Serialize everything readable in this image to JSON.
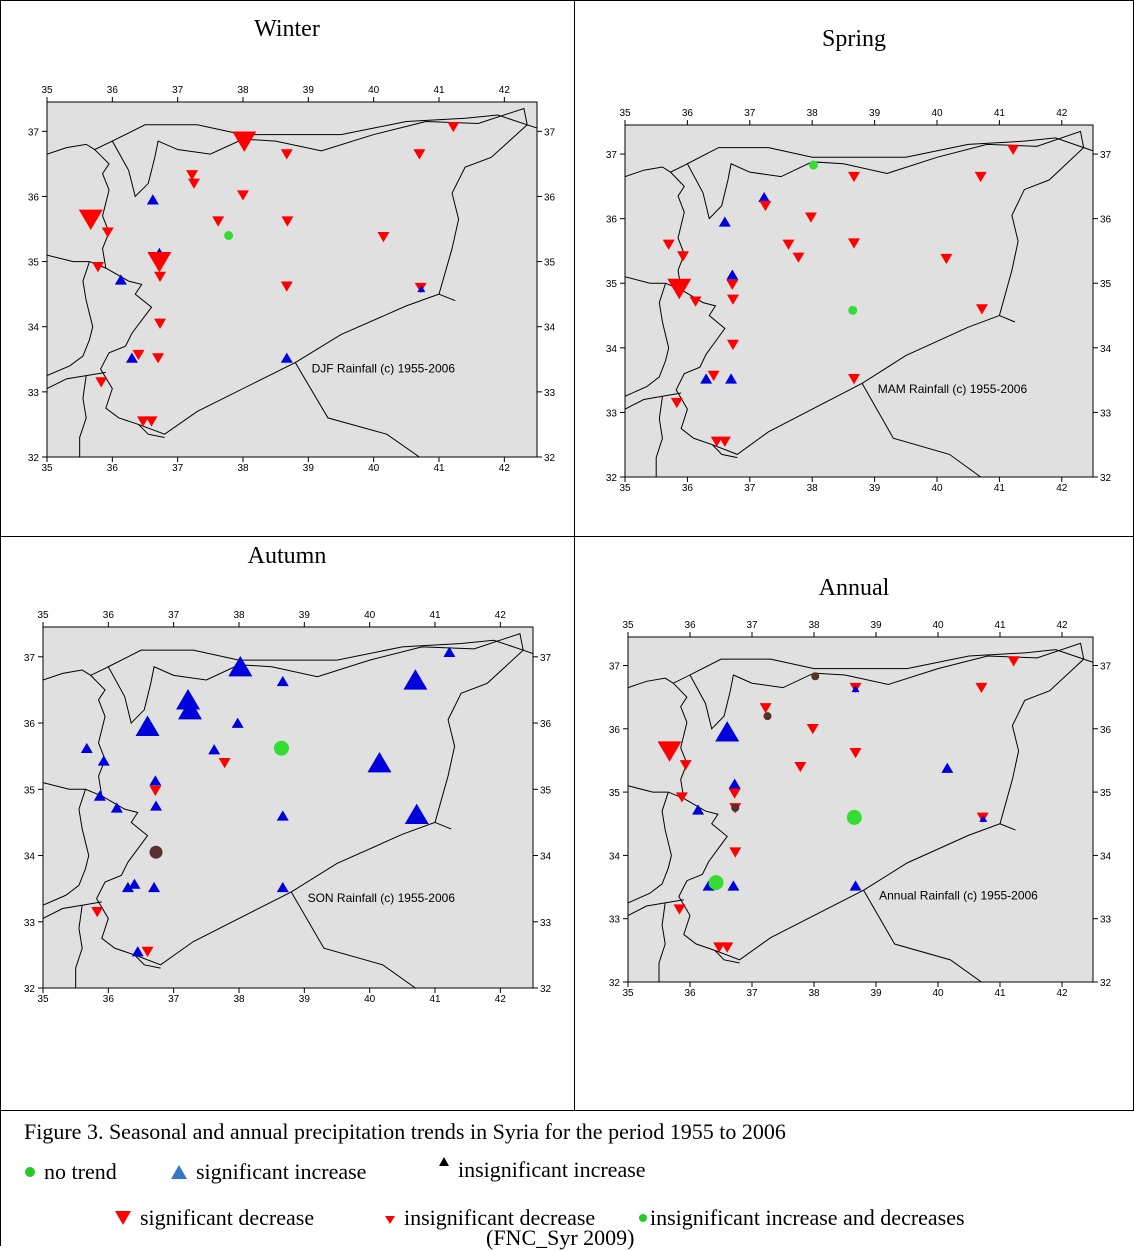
{
  "figure": {
    "caption": "Figure 3.  Seasonal and annual precipitation trends in Syria for the period 1955 to 2006",
    "source": "(FNC_Syr 2009)",
    "legend": [
      {
        "key": "no-trend",
        "label": "no trend",
        "color": "#22cc22",
        "shape": "circle"
      },
      {
        "key": "sig-inc",
        "label": "significant increase",
        "color": "#3377cc",
        "shape": "triangle-up"
      },
      {
        "key": "insig-inc",
        "label": "insignificant increase",
        "color": "#000000",
        "shape": "triangle-up-small"
      },
      {
        "key": "sig-dec",
        "label": "significant decrease",
        "color": "#ff0000",
        "shape": "triangle-down"
      },
      {
        "key": "insig-dec",
        "label": "insignificant decrease",
        "color": "#ff0000",
        "shape": "triangle-down-small"
      },
      {
        "key": "insig-both",
        "label": "insignificant increase and decreases",
        "color": "#22cc22",
        "shape": "circle-small"
      }
    ]
  },
  "colors": {
    "decrease": "#ff0000",
    "increase": "#0000dd",
    "no_trend": "#33dd33",
    "mixed": "#5a2e2e",
    "land": "#e0e0e0"
  },
  "axes": {
    "x_ticks": [
      35,
      36,
      37,
      38,
      39,
      40,
      41,
      42
    ],
    "y_ticks": [
      32,
      33,
      34,
      35,
      36,
      37
    ]
  },
  "maps": [
    {
      "season": "Winter",
      "label": "DJF Rainfall (c) 1955-2006",
      "stations": [
        {
          "lon": 35.67,
          "lat": 35.65,
          "t": "dec",
          "s": 3
        },
        {
          "lon": 35.93,
          "lat": 35.45,
          "t": "dec",
          "s": 1
        },
        {
          "lon": 35.78,
          "lat": 34.92,
          "t": "dec",
          "s": 1
        },
        {
          "lon": 36.13,
          "lat": 34.72,
          "t": "inc",
          "s": 1
        },
        {
          "lon": 35.83,
          "lat": 33.15,
          "t": "dec",
          "s": 1
        },
        {
          "lon": 36.3,
          "lat": 33.52,
          "t": "inc",
          "s": 1
        },
        {
          "lon": 36.4,
          "lat": 33.57,
          "t": "dec",
          "s": 1
        },
        {
          "lon": 36.47,
          "lat": 32.55,
          "t": "dec",
          "s": 1
        },
        {
          "lon": 36.6,
          "lat": 32.55,
          "t": "dec",
          "s": 1
        },
        {
          "lon": 36.62,
          "lat": 35.95,
          "t": "inc",
          "s": 1
        },
        {
          "lon": 36.72,
          "lat": 35.13,
          "t": "inc",
          "s": 1
        },
        {
          "lon": 36.72,
          "lat": 35.0,
          "t": "dec",
          "s": 3
        },
        {
          "lon": 36.73,
          "lat": 34.77,
          "t": "dec",
          "s": 1
        },
        {
          "lon": 36.73,
          "lat": 34.05,
          "t": "dec",
          "s": 1
        },
        {
          "lon": 36.7,
          "lat": 33.52,
          "t": "dec",
          "s": 1
        },
        {
          "lon": 37.22,
          "lat": 36.33,
          "t": "dec",
          "s": 1
        },
        {
          "lon": 37.25,
          "lat": 36.2,
          "t": "dec",
          "s": 1
        },
        {
          "lon": 37.62,
          "lat": 35.62,
          "t": "dec",
          "s": 1
        },
        {
          "lon": 37.78,
          "lat": 35.4,
          "t": "none",
          "s": 1
        },
        {
          "lon": 38.0,
          "lat": 36.02,
          "t": "dec",
          "s": 1
        },
        {
          "lon": 38.02,
          "lat": 36.85,
          "t": "dec",
          "s": 3
        },
        {
          "lon": 38.67,
          "lat": 36.65,
          "t": "dec",
          "s": 1
        },
        {
          "lon": 38.68,
          "lat": 35.62,
          "t": "dec",
          "s": 1
        },
        {
          "lon": 38.67,
          "lat": 34.62,
          "t": "dec",
          "s": 1
        },
        {
          "lon": 38.67,
          "lat": 33.52,
          "t": "inc",
          "s": 1
        },
        {
          "lon": 40.15,
          "lat": 35.38,
          "t": "dec",
          "s": 1
        },
        {
          "lon": 40.7,
          "lat": 36.65,
          "t": "dec",
          "s": 1
        },
        {
          "lon": 40.72,
          "lat": 34.6,
          "t": "dec",
          "s": 1
        },
        {
          "lon": 40.73,
          "lat": 34.58,
          "t": "inc",
          "s": 0
        },
        {
          "lon": 41.22,
          "lat": 37.07,
          "t": "dec",
          "s": 1
        }
      ]
    },
    {
      "season": "Spring",
      "label": "MAM Rainfall (c) 1955-2006",
      "stations": [
        {
          "lon": 35.7,
          "lat": 35.6,
          "t": "dec",
          "s": 1
        },
        {
          "lon": 35.93,
          "lat": 35.42,
          "t": "dec",
          "s": 1
        },
        {
          "lon": 35.87,
          "lat": 34.92,
          "t": "dec",
          "s": 3
        },
        {
          "lon": 36.13,
          "lat": 34.72,
          "t": "dec",
          "s": 1
        },
        {
          "lon": 35.83,
          "lat": 33.15,
          "t": "dec",
          "s": 1
        },
        {
          "lon": 36.3,
          "lat": 33.52,
          "t": "inc",
          "s": 1
        },
        {
          "lon": 36.42,
          "lat": 33.57,
          "t": "dec",
          "s": 1
        },
        {
          "lon": 36.47,
          "lat": 32.55,
          "t": "dec",
          "s": 1
        },
        {
          "lon": 36.6,
          "lat": 32.55,
          "t": "dec",
          "s": 1
        },
        {
          "lon": 36.6,
          "lat": 35.95,
          "t": "inc",
          "s": 1
        },
        {
          "lon": 36.72,
          "lat": 35.13,
          "t": "inc",
          "s": 1
        },
        {
          "lon": 36.72,
          "lat": 34.98,
          "t": "dec",
          "s": 1
        },
        {
          "lon": 36.73,
          "lat": 34.75,
          "t": "dec",
          "s": 1
        },
        {
          "lon": 36.73,
          "lat": 34.05,
          "t": "dec",
          "s": 1
        },
        {
          "lon": 36.7,
          "lat": 33.52,
          "t": "inc",
          "s": 1
        },
        {
          "lon": 37.23,
          "lat": 36.33,
          "t": "inc",
          "s": 1
        },
        {
          "lon": 37.25,
          "lat": 36.2,
          "t": "dec",
          "s": 1
        },
        {
          "lon": 37.62,
          "lat": 35.6,
          "t": "dec",
          "s": 1
        },
        {
          "lon": 37.78,
          "lat": 35.4,
          "t": "dec",
          "s": 1
        },
        {
          "lon": 37.98,
          "lat": 36.02,
          "t": "dec",
          "s": 1
        },
        {
          "lon": 38.02,
          "lat": 36.83,
          "t": "none",
          "s": 1
        },
        {
          "lon": 38.67,
          "lat": 36.65,
          "t": "dec",
          "s": 1
        },
        {
          "lon": 38.67,
          "lat": 35.62,
          "t": "dec",
          "s": 1
        },
        {
          "lon": 38.65,
          "lat": 34.58,
          "t": "none",
          "s": 1
        },
        {
          "lon": 38.67,
          "lat": 33.52,
          "t": "dec",
          "s": 1
        },
        {
          "lon": 40.15,
          "lat": 35.38,
          "t": "dec",
          "s": 1
        },
        {
          "lon": 40.7,
          "lat": 36.65,
          "t": "dec",
          "s": 1
        },
        {
          "lon": 40.72,
          "lat": 34.6,
          "t": "dec",
          "s": 1
        },
        {
          "lon": 41.22,
          "lat": 37.07,
          "t": "dec",
          "s": 1
        }
      ]
    },
    {
      "season": "Autumn",
      "label": "SON Rainfall (c) 1955-2006",
      "stations": [
        {
          "lon": 35.67,
          "lat": 35.62,
          "t": "inc",
          "s": 1
        },
        {
          "lon": 35.93,
          "lat": 35.43,
          "t": "inc",
          "s": 1
        },
        {
          "lon": 35.87,
          "lat": 34.9,
          "t": "inc",
          "s": 1
        },
        {
          "lon": 36.13,
          "lat": 34.72,
          "t": "inc",
          "s": 1
        },
        {
          "lon": 35.83,
          "lat": 33.15,
          "t": "dec",
          "s": 1
        },
        {
          "lon": 36.3,
          "lat": 33.52,
          "t": "inc",
          "s": 1
        },
        {
          "lon": 36.4,
          "lat": 33.57,
          "t": "inc",
          "s": 1
        },
        {
          "lon": 36.45,
          "lat": 32.55,
          "t": "inc",
          "s": 1
        },
        {
          "lon": 36.6,
          "lat": 32.55,
          "t": "dec",
          "s": 1
        },
        {
          "lon": 36.6,
          "lat": 35.95,
          "t": "inc",
          "s": 3
        },
        {
          "lon": 36.72,
          "lat": 35.13,
          "t": "inc",
          "s": 1
        },
        {
          "lon": 36.72,
          "lat": 34.98,
          "t": "dec",
          "s": 1
        },
        {
          "lon": 36.73,
          "lat": 34.75,
          "t": "inc",
          "s": 1
        },
        {
          "lon": 36.73,
          "lat": 34.05,
          "t": "mixed",
          "s": 2
        },
        {
          "lon": 36.7,
          "lat": 33.52,
          "t": "inc",
          "s": 1
        },
        {
          "lon": 37.22,
          "lat": 36.35,
          "t": "inc",
          "s": 3
        },
        {
          "lon": 37.25,
          "lat": 36.2,
          "t": "inc",
          "s": 3
        },
        {
          "lon": 37.62,
          "lat": 35.6,
          "t": "inc",
          "s": 1
        },
        {
          "lon": 37.78,
          "lat": 35.4,
          "t": "dec",
          "s": 1
        },
        {
          "lon": 37.98,
          "lat": 36.0,
          "t": "inc",
          "s": 1
        },
        {
          "lon": 38.02,
          "lat": 36.85,
          "t": "inc",
          "s": 3
        },
        {
          "lon": 38.67,
          "lat": 36.63,
          "t": "inc",
          "s": 1
        },
        {
          "lon": 38.65,
          "lat": 35.62,
          "t": "none",
          "s": 2
        },
        {
          "lon": 38.67,
          "lat": 34.6,
          "t": "inc",
          "s": 1
        },
        {
          "lon": 38.67,
          "lat": 33.52,
          "t": "inc",
          "s": 1
        },
        {
          "lon": 40.15,
          "lat": 35.4,
          "t": "inc",
          "s": 3
        },
        {
          "lon": 40.7,
          "lat": 36.65,
          "t": "inc",
          "s": 3
        },
        {
          "lon": 40.72,
          "lat": 34.62,
          "t": "inc",
          "s": 3
        },
        {
          "lon": 41.22,
          "lat": 37.07,
          "t": "inc",
          "s": 1
        }
      ]
    },
    {
      "season": "Annual",
      "label": "Annual Rainfall (c) 1955-2006",
      "stations": [
        {
          "lon": 35.67,
          "lat": 35.65,
          "t": "dec",
          "s": 3
        },
        {
          "lon": 35.93,
          "lat": 35.43,
          "t": "dec",
          "s": 1
        },
        {
          "lon": 35.87,
          "lat": 34.92,
          "t": "dec",
          "s": 1
        },
        {
          "lon": 36.13,
          "lat": 34.72,
          "t": "inc",
          "s": 1
        },
        {
          "lon": 35.83,
          "lat": 33.15,
          "t": "dec",
          "s": 1
        },
        {
          "lon": 36.3,
          "lat": 33.52,
          "t": "inc",
          "s": 1
        },
        {
          "lon": 36.42,
          "lat": 33.57,
          "t": "none",
          "s": 2
        },
        {
          "lon": 36.47,
          "lat": 32.55,
          "t": "dec",
          "s": 1
        },
        {
          "lon": 36.6,
          "lat": 32.55,
          "t": "dec",
          "s": 1
        },
        {
          "lon": 36.6,
          "lat": 35.95,
          "t": "inc",
          "s": 3
        },
        {
          "lon": 36.72,
          "lat": 35.13,
          "t": "inc",
          "s": 1
        },
        {
          "lon": 36.72,
          "lat": 34.98,
          "t": "dec",
          "s": 1
        },
        {
          "lon": 36.73,
          "lat": 34.75,
          "t": "dec",
          "s": 1
        },
        {
          "lon": 36.73,
          "lat": 34.75,
          "t": "mixed",
          "s": 1
        },
        {
          "lon": 36.73,
          "lat": 34.05,
          "t": "dec",
          "s": 1
        },
        {
          "lon": 36.7,
          "lat": 33.52,
          "t": "inc",
          "s": 1
        },
        {
          "lon": 37.22,
          "lat": 36.33,
          "t": "dec",
          "s": 1
        },
        {
          "lon": 37.25,
          "lat": 36.2,
          "t": "mixed",
          "s": 1
        },
        {
          "lon": 37.78,
          "lat": 35.4,
          "t": "dec",
          "s": 1
        },
        {
          "lon": 37.98,
          "lat": 36.0,
          "t": "dec",
          "s": 1
        },
        {
          "lon": 38.02,
          "lat": 36.83,
          "t": "mixed",
          "s": 1
        },
        {
          "lon": 38.67,
          "lat": 36.65,
          "t": "dec",
          "s": 1
        },
        {
          "lon": 38.67,
          "lat": 36.63,
          "t": "inc",
          "s": 0
        },
        {
          "lon": 38.67,
          "lat": 35.62,
          "t": "dec",
          "s": 1
        },
        {
          "lon": 38.65,
          "lat": 34.6,
          "t": "none",
          "s": 2
        },
        {
          "lon": 38.67,
          "lat": 33.52,
          "t": "inc",
          "s": 1
        },
        {
          "lon": 40.15,
          "lat": 35.38,
          "t": "inc",
          "s": 1
        },
        {
          "lon": 40.7,
          "lat": 36.65,
          "t": "dec",
          "s": 1
        },
        {
          "lon": 40.72,
          "lat": 34.6,
          "t": "dec",
          "s": 1
        },
        {
          "lon": 40.73,
          "lat": 34.58,
          "t": "inc",
          "s": 0
        },
        {
          "lon": 41.22,
          "lat": 37.07,
          "t": "dec",
          "s": 1
        }
      ]
    }
  ]
}
